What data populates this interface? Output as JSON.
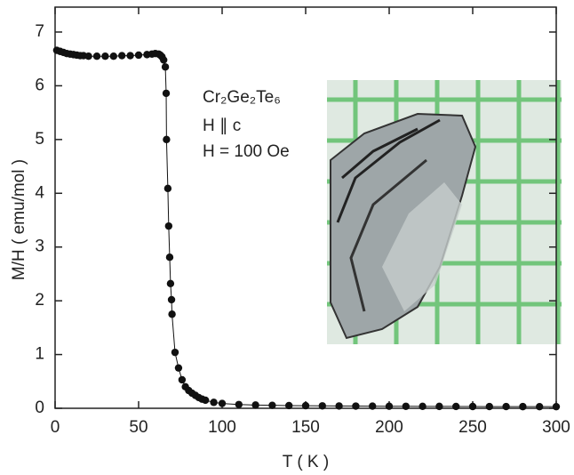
{
  "chart_data": {
    "type": "line",
    "xlabel": "T ( K )",
    "ylabel": "M/H ( emu/mol )",
    "annotations": [
      "Cr₂Ge₂Te₆",
      "H ∥ c",
      "H = 100 Oe"
    ],
    "xlim": [
      0,
      300
    ],
    "ylim": [
      0,
      7
    ],
    "xticks": [
      0,
      50,
      100,
      150,
      200,
      250,
      300
    ],
    "yticks": [
      0,
      1,
      2,
      3,
      4,
      5,
      6,
      7
    ],
    "color": "#111111",
    "x": [
      1,
      3,
      5,
      7,
      9,
      11,
      13,
      15,
      17,
      20,
      25,
      30,
      35,
      40,
      45,
      50,
      55,
      58,
      60,
      62,
      63,
      64,
      65,
      66,
      66.5,
      66.7,
      67.5,
      68,
      68.6,
      69.1,
      69.7,
      70,
      71.8,
      73.9,
      76,
      78,
      80,
      82,
      84,
      86,
      88,
      90,
      95,
      100,
      110,
      120,
      130,
      140,
      150,
      160,
      170,
      180,
      190,
      200,
      210,
      220,
      230,
      240,
      250,
      260,
      270,
      280,
      290,
      300
    ],
    "values": [
      6.66,
      6.64,
      6.62,
      6.6,
      6.59,
      6.58,
      6.57,
      6.56,
      6.56,
      6.55,
      6.55,
      6.55,
      6.55,
      6.56,
      6.56,
      6.57,
      6.58,
      6.59,
      6.6,
      6.59,
      6.57,
      6.54,
      6.48,
      6.35,
      5.86,
      5.0,
      4.09,
      3.39,
      2.81,
      2.32,
      2.02,
      1.75,
      1.04,
      0.75,
      0.53,
      0.4,
      0.33,
      0.28,
      0.24,
      0.2,
      0.17,
      0.15,
      0.11,
      0.09,
      0.07,
      0.06,
      0.055,
      0.05,
      0.048,
      0.045,
      0.043,
      0.041,
      0.04,
      0.038,
      0.037,
      0.036,
      0.035,
      0.034,
      0.033,
      0.032,
      0.032,
      0.031,
      0.03,
      0.03
    ]
  }
}
